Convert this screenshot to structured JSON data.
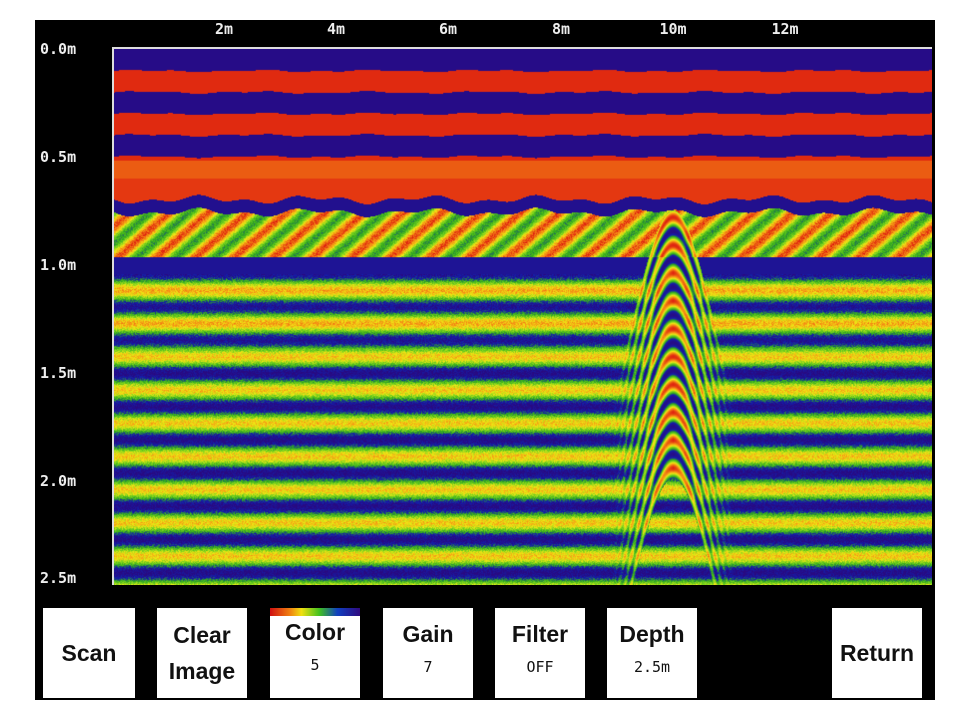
{
  "x_axis": {
    "unit": "m",
    "ticks": [
      "2m",
      "4m",
      "6m",
      "8m",
      "10m",
      "12m"
    ],
    "tick_values": [
      2,
      4,
      6,
      8,
      10,
      12
    ]
  },
  "y_axis": {
    "ticks": [
      "0.0m",
      "0.5m",
      "1.0m",
      "1.5m",
      "2.0m",
      "2.5m"
    ],
    "tick_values": [
      0,
      0.5,
      1.0,
      1.5,
      2.0,
      2.5
    ]
  },
  "scan": {
    "length_m": 14.6,
    "depth_m": 2.5,
    "target_position_m": 10,
    "target_apex_depth_m": 0.75
  },
  "buttons": {
    "scan": {
      "label": "Scan"
    },
    "clear": {
      "line1": "Clear",
      "line2": "Image"
    },
    "color": {
      "label": "Color",
      "value": "5"
    },
    "gain": {
      "label": "Gain",
      "value": "7"
    },
    "filter": {
      "label": "Filter",
      "value": "OFF"
    },
    "depth": {
      "label": "Depth",
      "value": "2.5m"
    },
    "return": {
      "label": "Return"
    }
  },
  "colors": {
    "background": "#000000",
    "button": "#ffffff",
    "axis_text": "#eeeeee"
  }
}
